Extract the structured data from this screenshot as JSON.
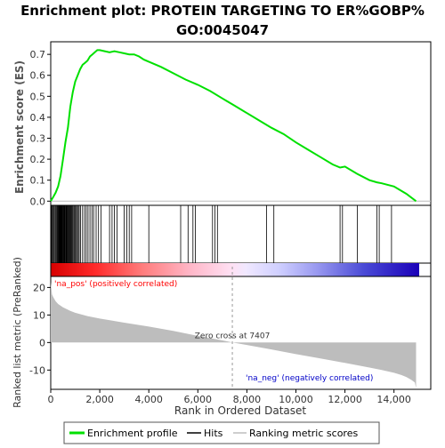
{
  "chart_data": {
    "type": "line",
    "title_line1": "Enrichment plot: PROTEIN TARGETING TO ER%GOBP%",
    "title_line2": "GO:0045047",
    "top_panel": {
      "ylabel": "Enrichment score (ES)",
      "ylim": [
        -0.02,
        0.76
      ],
      "yticks": [
        "0.0",
        "0.1",
        "0.2",
        "0.3",
        "0.4",
        "0.5",
        "0.6",
        "0.7"
      ],
      "ytick_values": [
        0.0,
        0.1,
        0.2,
        0.3,
        0.4,
        0.5,
        0.6,
        0.7
      ],
      "es_curve": {
        "x": [
          0,
          100,
          200,
          300,
          400,
          500,
          600,
          700,
          800,
          900,
          1000,
          1100,
          1200,
          1300,
          1400,
          1500,
          1600,
          1700,
          1800,
          1900,
          2000,
          2200,
          2400,
          2600,
          2800,
          3000,
          3200,
          3400,
          3600,
          3800,
          4000,
          4500,
          5000,
          5500,
          6000,
          6500,
          7000,
          7500,
          8000,
          8500,
          9000,
          9500,
          10000,
          10500,
          11000,
          11500,
          11800,
          12000,
          12500,
          13000,
          13300,
          13500,
          14000,
          14500,
          14900
        ],
        "y": [
          0.0,
          0.02,
          0.04,
          0.07,
          0.12,
          0.2,
          0.28,
          0.35,
          0.45,
          0.52,
          0.57,
          0.6,
          0.63,
          0.65,
          0.66,
          0.67,
          0.69,
          0.7,
          0.71,
          0.72,
          0.72,
          0.715,
          0.71,
          0.715,
          0.71,
          0.705,
          0.7,
          0.7,
          0.69,
          0.675,
          0.665,
          0.64,
          0.61,
          0.58,
          0.555,
          0.525,
          0.49,
          0.455,
          0.42,
          0.385,
          0.35,
          0.32,
          0.28,
          0.245,
          0.21,
          0.175,
          0.16,
          0.165,
          0.13,
          0.1,
          0.09,
          0.085,
          0.07,
          0.035,
          0.0
        ]
      }
    },
    "hits_panel": {
      "hit_positions": [
        30,
        60,
        90,
        130,
        170,
        200,
        240,
        260,
        290,
        310,
        330,
        350,
        370,
        390,
        410,
        430,
        450,
        470,
        490,
        510,
        530,
        550,
        570,
        600,
        620,
        640,
        660,
        690,
        720,
        740,
        770,
        800,
        830,
        860,
        890,
        920,
        960,
        1000,
        1040,
        1080,
        1120,
        1160,
        1220,
        1300,
        1380,
        1450,
        1520,
        1600,
        1680,
        1750,
        1850,
        1950,
        2050,
        2400,
        2500,
        2600,
        2700,
        3000,
        3100,
        3200,
        3300,
        4000,
        5300,
        5600,
        5800,
        5900,
        6600,
        6700,
        6800,
        8800,
        9100,
        11800,
        11900,
        12500,
        13300,
        13400,
        13900
      ]
    },
    "rank_panel": {
      "ylabel": "Ranked list metric (PreRanked)",
      "xlabel": "Rank in Ordered Dataset",
      "ylim": [
        -17,
        24
      ],
      "yticks": [
        "20",
        "10",
        "0",
        "-10"
      ],
      "ytick_values": [
        20,
        10,
        0,
        -10
      ],
      "xticks": [
        "0",
        "2,000",
        "4,000",
        "6,000",
        "8,000",
        "10,000",
        "12,000",
        "14,000"
      ],
      "xtick_values": [
        0,
        2000,
        4000,
        6000,
        8000,
        10000,
        12000,
        14000
      ],
      "xlim": [
        0,
        15500
      ],
      "n_genes": 14900,
      "zero_cross_label": "Zero cross at 7407",
      "zero_cross": 7407,
      "pos_label": "'na_pos' (positively correlated)",
      "neg_label": "'na_neg' (negatively correlated)",
      "metric_curve": {
        "x": [
          0,
          50,
          100,
          200,
          300,
          500,
          800,
          1000,
          1500,
          2000,
          3000,
          4000,
          5000,
          6000,
          7000,
          7407,
          8000,
          9000,
          10000,
          11000,
          12000,
          13000,
          13500,
          14000,
          14300,
          14500,
          14700,
          14850,
          14900
        ],
        "y": [
          22,
          17.5,
          16.5,
          15,
          14,
          12.8,
          11.5,
          10.8,
          9.6,
          8.7,
          7.2,
          5.8,
          4.2,
          2.4,
          0.8,
          0,
          -0.9,
          -2.5,
          -4.2,
          -5.8,
          -7.4,
          -9.1,
          -10,
          -11,
          -11.8,
          -12.5,
          -13.5,
          -14.5,
          -16.5
        ]
      }
    },
    "legend": {
      "items": [
        {
          "label": "Enrichment profile",
          "color": "#00e000"
        },
        {
          "label": "Hits",
          "color": "#000000"
        },
        {
          "label": "Ranking metric scores",
          "color": "#bdbdbd"
        }
      ]
    },
    "colors": {
      "es_line": "#00e000",
      "metric_fill": "#bdbdbd",
      "pos_label": "#ff0000",
      "neg_label": "#0000c8",
      "axis": "#000000"
    }
  }
}
